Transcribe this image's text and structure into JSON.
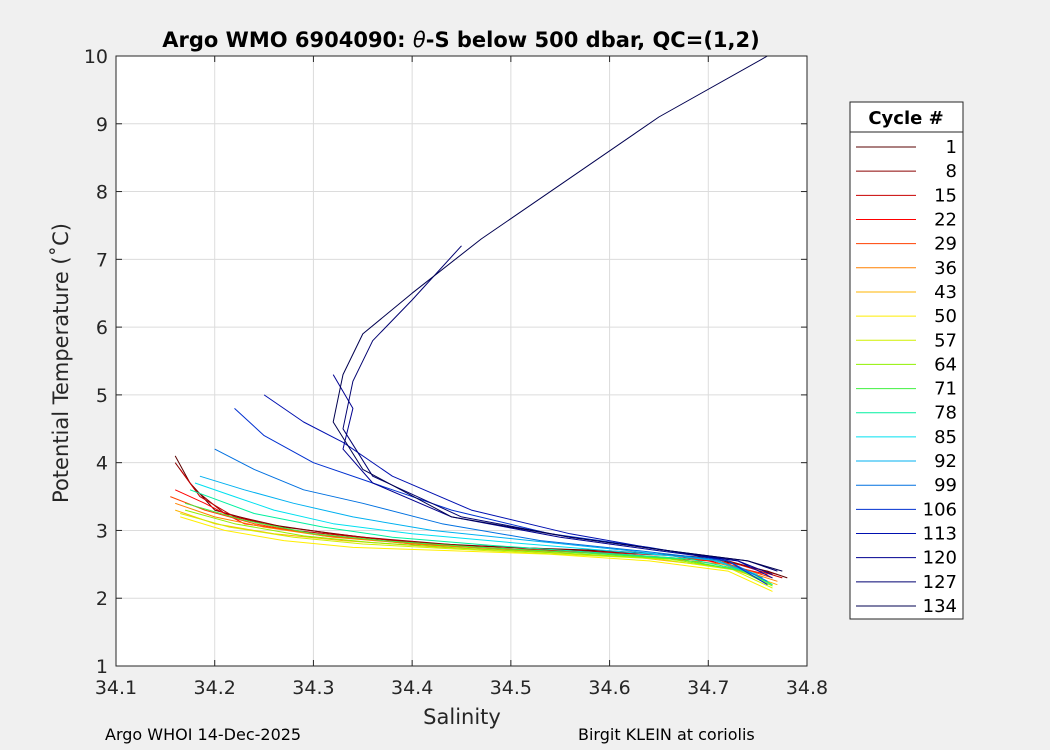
{
  "chart_data": {
    "type": "line",
    "title_prefix": "Argo WMO 6904090: ",
    "title_theta": "θ",
    "title_suffix": "-S below 500 dbar,  QC=(1,2)",
    "xlabel": "Salinity",
    "ylabel": "Potential Temperature (˚C)",
    "xlim": [
      34.1,
      34.8
    ],
    "ylim": [
      1,
      10
    ],
    "xticks": [
      34.1,
      34.2,
      34.3,
      34.4,
      34.5,
      34.6,
      34.7,
      34.8
    ],
    "yticks": [
      1,
      2,
      3,
      4,
      5,
      6,
      7,
      8,
      9,
      10
    ],
    "grid": true,
    "legend_title": "Cycle #",
    "legend_position": "right",
    "series": [
      {
        "name": "1",
        "color": "#5a0000",
        "points": [
          [
            34.16,
            4.1
          ],
          [
            34.175,
            3.7
          ],
          [
            34.2,
            3.3
          ],
          [
            34.25,
            3.1
          ],
          [
            34.32,
            2.95
          ],
          [
            34.4,
            2.82
          ],
          [
            34.5,
            2.75
          ],
          [
            34.6,
            2.7
          ],
          [
            34.7,
            2.6
          ],
          [
            34.76,
            2.4
          ],
          [
            34.78,
            2.3
          ]
        ]
      },
      {
        "name": "8",
        "color": "#8b0000",
        "points": [
          [
            34.16,
            4.0
          ],
          [
            34.18,
            3.6
          ],
          [
            34.21,
            3.25
          ],
          [
            34.27,
            3.05
          ],
          [
            34.35,
            2.9
          ],
          [
            34.45,
            2.78
          ],
          [
            34.55,
            2.72
          ],
          [
            34.65,
            2.65
          ],
          [
            34.72,
            2.55
          ],
          [
            34.77,
            2.35
          ]
        ]
      },
      {
        "name": "15",
        "color": "#c80000",
        "points": [
          [
            34.165,
            3.9
          ],
          [
            34.185,
            3.5
          ],
          [
            34.22,
            3.2
          ],
          [
            34.28,
            3.0
          ],
          [
            34.36,
            2.88
          ],
          [
            34.46,
            2.75
          ],
          [
            34.56,
            2.7
          ],
          [
            34.66,
            2.63
          ],
          [
            34.73,
            2.5
          ],
          [
            34.775,
            2.3
          ]
        ]
      },
      {
        "name": "22",
        "color": "#ff0000",
        "points": [
          [
            34.16,
            3.6
          ],
          [
            34.19,
            3.4
          ],
          [
            34.23,
            3.1
          ],
          [
            34.3,
            2.95
          ],
          [
            34.4,
            2.8
          ],
          [
            34.5,
            2.72
          ],
          [
            34.6,
            2.66
          ],
          [
            34.7,
            2.55
          ],
          [
            34.76,
            2.35
          ]
        ]
      },
      {
        "name": "29",
        "color": "#ff4000",
        "points": [
          [
            34.155,
            3.5
          ],
          [
            34.19,
            3.3
          ],
          [
            34.24,
            3.1
          ],
          [
            34.31,
            2.92
          ],
          [
            34.41,
            2.8
          ],
          [
            34.51,
            2.72
          ],
          [
            34.61,
            2.65
          ],
          [
            34.71,
            2.55
          ],
          [
            34.765,
            2.3
          ]
        ]
      },
      {
        "name": "36",
        "color": "#ff8000",
        "points": [
          [
            34.16,
            3.4
          ],
          [
            34.2,
            3.2
          ],
          [
            34.25,
            3.05
          ],
          [
            34.32,
            2.9
          ],
          [
            34.42,
            2.78
          ],
          [
            34.52,
            2.7
          ],
          [
            34.62,
            2.64
          ],
          [
            34.715,
            2.5
          ],
          [
            34.77,
            2.25
          ]
        ]
      },
      {
        "name": "43",
        "color": "#ffb400",
        "points": [
          [
            34.16,
            3.3
          ],
          [
            34.2,
            3.1
          ],
          [
            34.26,
            2.95
          ],
          [
            34.33,
            2.85
          ],
          [
            34.43,
            2.75
          ],
          [
            34.53,
            2.68
          ],
          [
            34.63,
            2.6
          ],
          [
            34.72,
            2.45
          ],
          [
            34.77,
            2.2
          ]
        ]
      },
      {
        "name": "50",
        "color": "#ffee00",
        "points": [
          [
            34.165,
            3.2
          ],
          [
            34.21,
            3.0
          ],
          [
            34.27,
            2.85
          ],
          [
            34.34,
            2.75
          ],
          [
            34.44,
            2.7
          ],
          [
            34.54,
            2.65
          ],
          [
            34.64,
            2.55
          ],
          [
            34.72,
            2.4
          ],
          [
            34.765,
            2.1
          ]
        ]
      },
      {
        "name": "57",
        "color": "#d0f000",
        "points": [
          [
            34.165,
            3.25
          ],
          [
            34.215,
            3.05
          ],
          [
            34.28,
            2.9
          ],
          [
            34.35,
            2.8
          ],
          [
            34.45,
            2.72
          ],
          [
            34.55,
            2.65
          ],
          [
            34.65,
            2.58
          ],
          [
            34.725,
            2.42
          ],
          [
            34.765,
            2.15
          ]
        ]
      },
      {
        "name": "64",
        "color": "#90f000",
        "points": [
          [
            34.17,
            3.3
          ],
          [
            34.22,
            3.1
          ],
          [
            34.29,
            2.92
          ],
          [
            34.36,
            2.82
          ],
          [
            34.46,
            2.73
          ],
          [
            34.56,
            2.66
          ],
          [
            34.66,
            2.58
          ],
          [
            34.73,
            2.42
          ],
          [
            34.765,
            2.18
          ]
        ]
      },
      {
        "name": "71",
        "color": "#40f040",
        "points": [
          [
            34.17,
            3.4
          ],
          [
            34.23,
            3.15
          ],
          [
            34.3,
            2.95
          ],
          [
            34.37,
            2.85
          ],
          [
            34.47,
            2.75
          ],
          [
            34.57,
            2.67
          ],
          [
            34.67,
            2.58
          ],
          [
            34.735,
            2.4
          ],
          [
            34.765,
            2.2
          ]
        ]
      },
      {
        "name": "78",
        "color": "#00f0a0",
        "points": [
          [
            34.175,
            3.6
          ],
          [
            34.24,
            3.25
          ],
          [
            34.31,
            3.05
          ],
          [
            34.38,
            2.9
          ],
          [
            34.48,
            2.78
          ],
          [
            34.58,
            2.68
          ],
          [
            34.68,
            2.58
          ],
          [
            34.74,
            2.4
          ],
          [
            34.765,
            2.2
          ]
        ]
      },
      {
        "name": "85",
        "color": "#00e0f0",
        "points": [
          [
            34.18,
            3.7
          ],
          [
            34.22,
            3.5
          ],
          [
            34.26,
            3.3
          ],
          [
            34.32,
            3.1
          ],
          [
            34.4,
            2.95
          ],
          [
            34.5,
            2.82
          ],
          [
            34.6,
            2.7
          ],
          [
            34.7,
            2.58
          ],
          [
            34.75,
            2.35
          ]
        ]
      },
      {
        "name": "92",
        "color": "#00b0f0",
        "points": [
          [
            34.185,
            3.8
          ],
          [
            34.23,
            3.6
          ],
          [
            34.28,
            3.4
          ],
          [
            34.34,
            3.2
          ],
          [
            34.42,
            3.0
          ],
          [
            34.52,
            2.85
          ],
          [
            34.62,
            2.7
          ],
          [
            34.71,
            2.55
          ],
          [
            34.755,
            2.3
          ]
        ]
      },
      {
        "name": "99",
        "color": "#0070e0",
        "points": [
          [
            34.2,
            4.2
          ],
          [
            34.24,
            3.9
          ],
          [
            34.29,
            3.6
          ],
          [
            34.35,
            3.4
          ],
          [
            34.43,
            3.1
          ],
          [
            34.53,
            2.85
          ],
          [
            34.63,
            2.7
          ],
          [
            34.72,
            2.55
          ],
          [
            34.76,
            2.25
          ]
        ]
      },
      {
        "name": "106",
        "color": "#0030d0",
        "points": [
          [
            34.22,
            4.8
          ],
          [
            34.25,
            4.4
          ],
          [
            34.3,
            4.0
          ],
          [
            34.36,
            3.7
          ],
          [
            34.44,
            3.3
          ],
          [
            34.54,
            2.95
          ],
          [
            34.64,
            2.75
          ],
          [
            34.72,
            2.55
          ],
          [
            34.76,
            2.2
          ]
        ]
      },
      {
        "name": "113",
        "color": "#0010b0",
        "points": [
          [
            34.25,
            5.0
          ],
          [
            34.29,
            4.6
          ],
          [
            34.33,
            4.3
          ],
          [
            34.38,
            3.8
          ],
          [
            34.46,
            3.3
          ],
          [
            34.56,
            2.95
          ],
          [
            34.65,
            2.72
          ],
          [
            34.73,
            2.55
          ],
          [
            34.765,
            2.3
          ]
        ]
      },
      {
        "name": "120",
        "color": "#000090",
        "points": [
          [
            34.32,
            5.3
          ],
          [
            34.34,
            4.8
          ],
          [
            34.33,
            4.2
          ],
          [
            34.36,
            3.7
          ],
          [
            34.44,
            3.2
          ],
          [
            34.55,
            2.9
          ],
          [
            34.65,
            2.7
          ],
          [
            34.73,
            2.55
          ],
          [
            34.765,
            2.35
          ]
        ]
      },
      {
        "name": "127",
        "color": "#000070",
        "points": [
          [
            34.45,
            7.2
          ],
          [
            34.4,
            6.4
          ],
          [
            34.36,
            5.8
          ],
          [
            34.34,
            5.2
          ],
          [
            34.33,
            4.5
          ],
          [
            34.36,
            3.8
          ],
          [
            34.45,
            3.2
          ],
          [
            34.56,
            2.9
          ],
          [
            34.66,
            2.7
          ],
          [
            34.74,
            2.55
          ],
          [
            34.77,
            2.4
          ]
        ]
      },
      {
        "name": "134",
        "color": "#000050",
        "points": [
          [
            34.76,
            10.0
          ],
          [
            34.65,
            9.1
          ],
          [
            34.55,
            8.1
          ],
          [
            34.47,
            7.3
          ],
          [
            34.4,
            6.5
          ],
          [
            34.35,
            5.9
          ],
          [
            34.33,
            5.3
          ],
          [
            34.32,
            4.6
          ],
          [
            34.35,
            3.9
          ],
          [
            34.44,
            3.2
          ],
          [
            34.56,
            2.9
          ],
          [
            34.66,
            2.7
          ],
          [
            34.74,
            2.55
          ],
          [
            34.775,
            2.4
          ]
        ]
      }
    ]
  },
  "footer": {
    "left": "Argo WHOI 14-Dec-2025",
    "right": "Birgit KLEIN at coriolis"
  }
}
